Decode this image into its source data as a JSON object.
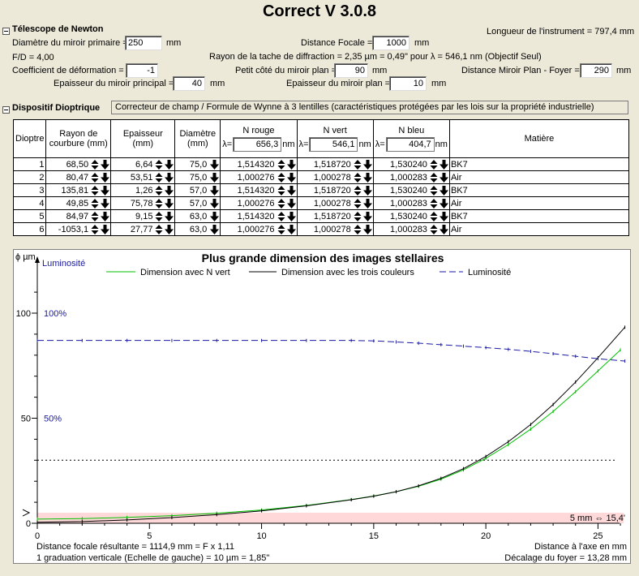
{
  "app_title": "Correct V 3.0.8",
  "telescope": {
    "section_title": "Télescope de Newton",
    "primary_diameter_label": "Diamètre du miroir primaire =",
    "primary_diameter_value": "250",
    "primary_diameter_unit": "mm",
    "fd_text": "F/D = 4,00",
    "deformation_label": "Coefficient de déformation =",
    "deformation_value": "-1",
    "primary_thickness_label": "Epaisseur du miroir principal =",
    "primary_thickness_value": "40",
    "primary_thickness_unit": "mm",
    "focal_label": "Distance Focale =",
    "focal_value": "1000",
    "focal_unit": "mm",
    "diffraction_text": "Rayon de la tache de diffraction = 2,35 µm = 0,49\" pour λ = 546,1 nm (Objectif Seul)",
    "small_side_label": "Petit côté du miroir plan =",
    "small_side_value": "90",
    "small_side_unit": "mm",
    "flat_thickness_label": "Epaisseur du miroir plan =",
    "flat_thickness_value": "10",
    "flat_thickness_unit": "mm",
    "instrument_length_text": "Longueur de l'instrument = 797,4 mm",
    "flat_focus_label": "Distance Miroir Plan - Foyer =",
    "flat_focus_value": "290",
    "flat_focus_unit": "mm"
  },
  "dioptric": {
    "section_title": "Dispositif Dioptrique",
    "description": "Correcteur de champ / Formule de Wynne à 3 lentilles (caractéristiques protégées par les lois sur la propriété industrielle)",
    "headers": {
      "dioptre": "Dioptre",
      "rayon_1": "Rayon de",
      "rayon_2": "courbure (mm)",
      "epaisseur_1": "Epaisseur",
      "epaisseur_2": "(mm)",
      "diametre_1": "Diamètre",
      "diametre_2": "(mm)",
      "n_rouge": "N rouge",
      "n_vert": "N vert",
      "n_bleu": "N bleu",
      "lambda_prefix": "λ=",
      "lambda_unit": "nm",
      "lambda_rouge": "656,3",
      "lambda_vert": "546,1",
      "lambda_bleu": "404,7",
      "matiere": "Matière"
    },
    "rows": [
      {
        "n": "1",
        "rayon": "68,50",
        "epaisseur": "6,64",
        "diametre": "75,0",
        "nr": "1,514320",
        "nv": "1,518720",
        "nb": "1,530240",
        "matiere": "BK7"
      },
      {
        "n": "2",
        "rayon": "80,47",
        "epaisseur": "53,51",
        "diametre": "75,0",
        "nr": "1,000276",
        "nv": "1,000278",
        "nb": "1,000283",
        "matiere": "Air"
      },
      {
        "n": "3",
        "rayon": "135,81",
        "epaisseur": "1,26",
        "diametre": "57,0",
        "nr": "1,514320",
        "nv": "1,518720",
        "nb": "1,530240",
        "matiere": "BK7"
      },
      {
        "n": "4",
        "rayon": "49,85",
        "epaisseur": "75,78",
        "diametre": "57,0",
        "nr": "1,000276",
        "nv": "1,000278",
        "nb": "1,000283",
        "matiere": "Air"
      },
      {
        "n": "5",
        "rayon": "84,97",
        "epaisseur": "9,15",
        "diametre": "63,0",
        "nr": "1,514320",
        "nv": "1,518720",
        "nb": "1,530240",
        "matiere": "BK7"
      },
      {
        "n": "6",
        "rayon": "-1053,1",
        "epaisseur": "27,77",
        "diametre": "63,0",
        "nr": "1,000276",
        "nv": "1,000278",
        "nb": "1,000283",
        "matiere": "Air"
      }
    ]
  },
  "chart_data": {
    "type": "line",
    "title": "Plus grande dimension des images stellaires",
    "ylabel": "ϕ µm",
    "y2label": "Luminosité",
    "legend": [
      "Dimension avec N vert",
      "Dimension avec les trois couleurs",
      "Luminosité"
    ],
    "xlim": [
      0,
      26.2
    ],
    "ylim": [
      0,
      100
    ],
    "xticks": [
      "0",
      "5",
      "10",
      "15",
      "20",
      "25"
    ],
    "yticks": [
      "0",
      "50",
      "100"
    ],
    "y2ticks": [
      "50%",
      "100%"
    ],
    "series": [
      {
        "name": "Dimension avec N vert",
        "color": "#00c000",
        "x": [
          0,
          2,
          4,
          6,
          8,
          10,
          12,
          14,
          15,
          16,
          17,
          18,
          19,
          20,
          21,
          22,
          23,
          24,
          25,
          26
        ],
        "y": [
          2.0,
          2.2,
          2.8,
          3.6,
          4.8,
          6.3,
          8.5,
          11.3,
          13.0,
          15.0,
          17.6,
          21.0,
          25.4,
          30.9,
          37.4,
          44.8,
          53.2,
          62.6,
          72.5,
          82.5
        ]
      },
      {
        "name": "Dimension avec les trois couleurs",
        "color": "#000000",
        "x": [
          0,
          2,
          4,
          6,
          8,
          10,
          12,
          14,
          15,
          16,
          17,
          18,
          19,
          20,
          21,
          22,
          23,
          24,
          25,
          26.2
        ],
        "y": [
          0.5,
          0.8,
          1.6,
          2.7,
          4.1,
          5.9,
          8.3,
          11.2,
          12.9,
          15.0,
          17.8,
          21.4,
          26.0,
          31.8,
          38.8,
          47.0,
          56.5,
          67.2,
          78.8,
          93.3
        ]
      },
      {
        "name": "Luminosité",
        "color": "#1a1aa0",
        "x": [
          0,
          2,
          4,
          6,
          8,
          10,
          12,
          14,
          15,
          16,
          17,
          18,
          19,
          20,
          21,
          22,
          23,
          24,
          25,
          26.2
        ],
        "y": [
          87,
          87,
          87,
          87,
          87,
          87,
          87,
          87,
          86.8,
          86.3,
          85.7,
          85.0,
          84.3,
          83.6,
          82.8,
          81.8,
          80.7,
          79.5,
          78.3,
          77.2
        ]
      }
    ],
    "reference_line_y": 30,
    "band_y": [
      0,
      5
    ],
    "band_label": "5 mm  ⇔  15,4'",
    "x_axis_label": "Distance à l'axe en mm",
    "focus_shift_text": "Décalage du foyer = 13,28 mm",
    "focal_result_text": "Distance focale résultante = 1114,9 mm = F x 1,11",
    "graduation_text": "1 graduation verticale (Echelle de gauche) = 10 µm = 1,85\""
  }
}
